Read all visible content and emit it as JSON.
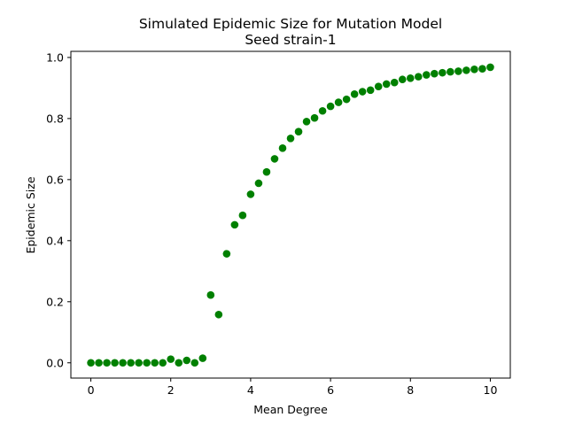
{
  "chart_data": {
    "type": "scatter",
    "title": "Simulated Epidemic Size for Mutation Model",
    "subtitle": "Seed strain-1",
    "xlabel": "Mean Degree",
    "ylabel": "Epidemic Size",
    "xlim": [
      -0.5,
      10.5
    ],
    "ylim": [
      -0.05,
      1.02
    ],
    "xticks": [
      0,
      2,
      4,
      6,
      8,
      10
    ],
    "xtick_labels": [
      "0",
      "2",
      "4",
      "6",
      "8",
      "10"
    ],
    "yticks": [
      0.0,
      0.2,
      0.4,
      0.6,
      0.8,
      1.0
    ],
    "ytick_labels": [
      "0.0",
      "0.2",
      "0.4",
      "0.6",
      "0.8",
      "1.0"
    ],
    "grid": false,
    "marker_color": "#008000",
    "x": [
      0.0,
      0.2,
      0.4,
      0.6,
      0.8,
      1.0,
      1.2,
      1.4,
      1.6,
      1.8,
      2.0,
      2.2,
      2.4,
      2.6,
      2.8,
      3.0,
      3.2,
      3.4,
      3.6,
      3.8,
      4.0,
      4.2,
      4.4,
      4.6,
      4.8,
      5.0,
      5.2,
      5.4,
      5.6,
      5.8,
      6.0,
      6.2,
      6.4,
      6.6,
      6.8,
      7.0,
      7.2,
      7.4,
      7.6,
      7.8,
      8.0,
      8.2,
      8.4,
      8.6,
      8.8,
      9.0,
      9.2,
      9.4,
      9.6,
      9.8,
      10.0
    ],
    "y": [
      0.0,
      0.0,
      0.0,
      0.0,
      0.0,
      0.0,
      0.0,
      0.0,
      0.0,
      0.0,
      0.012,
      0.0,
      0.008,
      0.0,
      0.015,
      0.222,
      0.158,
      0.357,
      0.452,
      0.483,
      0.552,
      0.588,
      0.625,
      0.668,
      0.703,
      0.735,
      0.757,
      0.79,
      0.802,
      0.825,
      0.84,
      0.853,
      0.863,
      0.88,
      0.888,
      0.893,
      0.905,
      0.913,
      0.918,
      0.928,
      0.932,
      0.937,
      0.943,
      0.947,
      0.95,
      0.953,
      0.955,
      0.958,
      0.961,
      0.963,
      0.968
    ]
  }
}
